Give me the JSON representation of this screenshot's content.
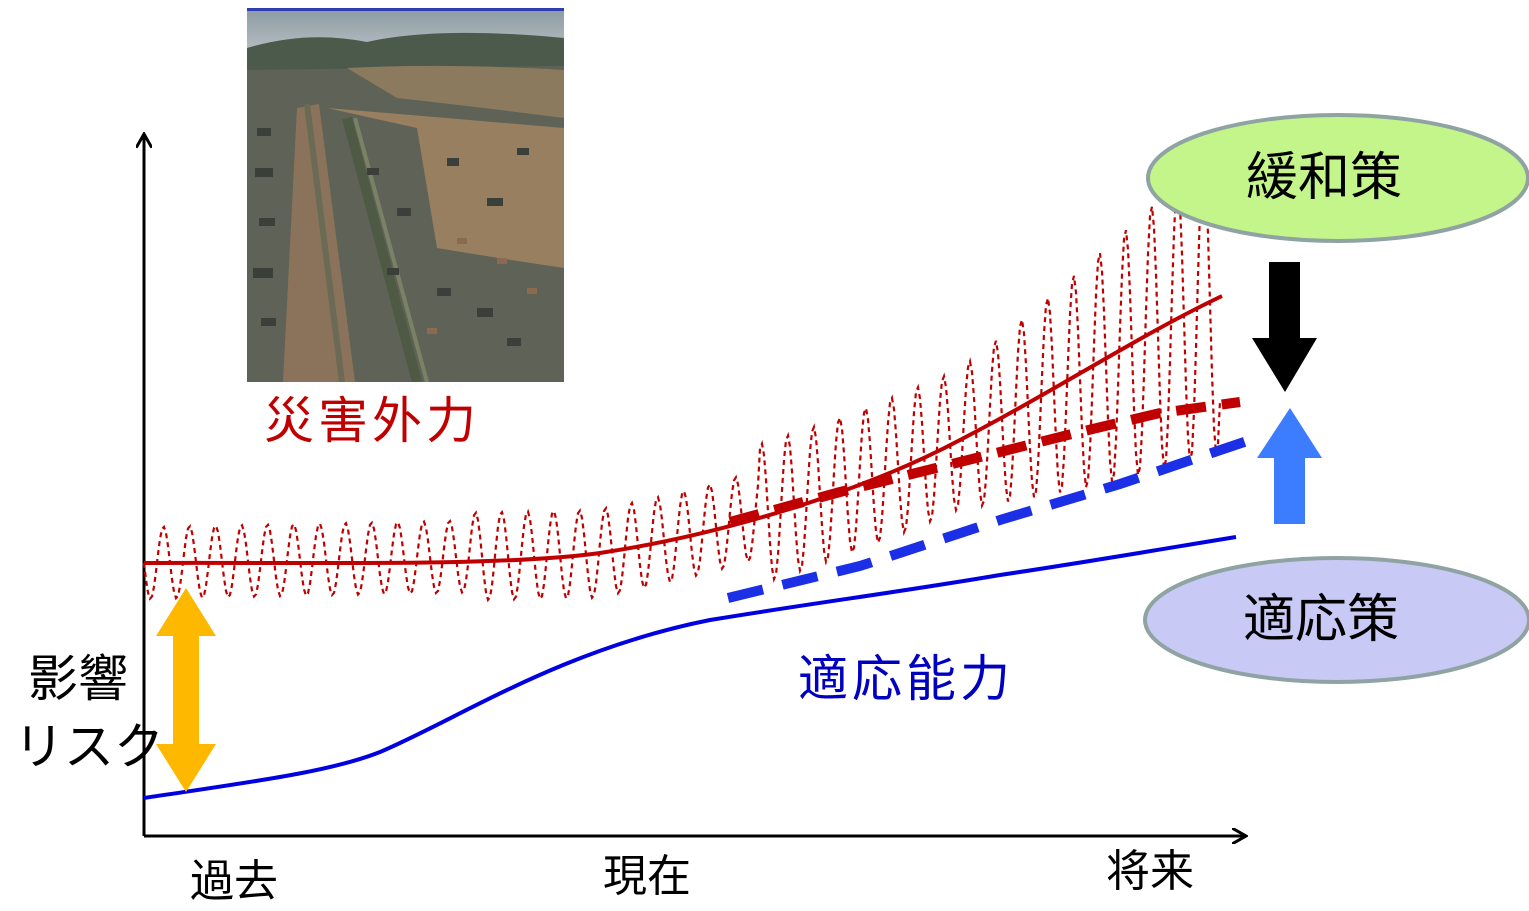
{
  "labels": {
    "hazard": "災害外力",
    "adaptive_capacity": "適応能力",
    "impact_risk_line1": "影響",
    "impact_risk_line2": "リスク",
    "mitigation": "緩和策",
    "adaptation": "適応策",
    "past": "過去",
    "present": "現在",
    "future": "将来"
  },
  "colors": {
    "hazard": "#c00000",
    "adaptive": "#0000e0",
    "adaptive_dashed": "#1a2fe6",
    "mitigation_fill": "#c3f58a",
    "adaptation_fill": "#c9c9f5",
    "ellipse_stroke": "#8fa3a3",
    "risk_arrow": "#ffb800",
    "mitigation_arrow": "#000000",
    "adaptation_arrow": "#3c7cff"
  },
  "icons": {
    "photo": "flood-aerial-photo",
    "mitigation_arrow": "arrow-down-icon",
    "adaptation_arrow": "arrow-up-icon",
    "risk_arrow": "double-arrow-icon"
  }
}
